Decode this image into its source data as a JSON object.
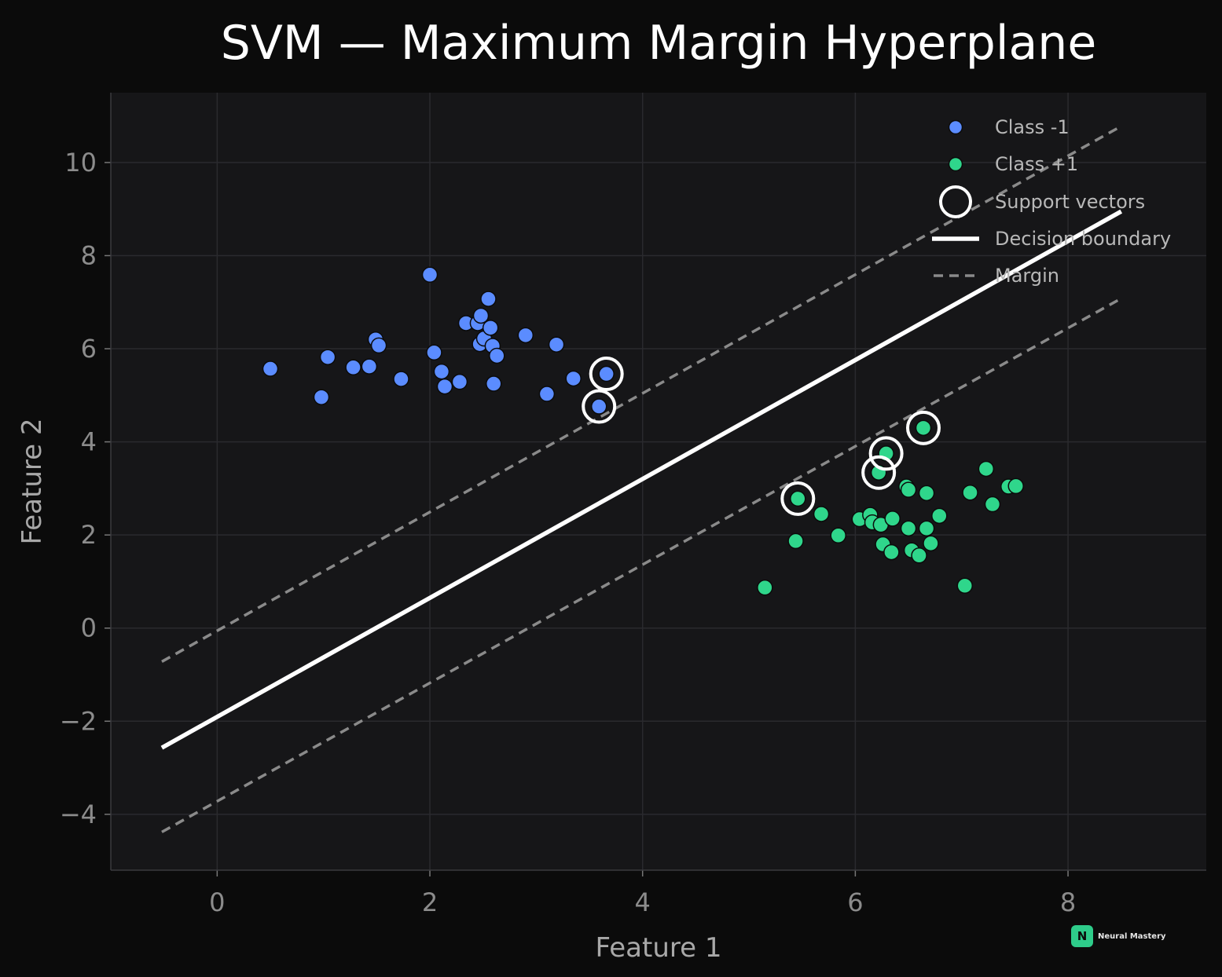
{
  "chart_data": {
    "type": "scatter",
    "title": "SVM — Maximum Margin Hyperplane",
    "xlabel": "Feature 1",
    "ylabel": "Feature 2",
    "xlim": [
      -1.0,
      9.3
    ],
    "ylim": [
      -5.2,
      11.5
    ],
    "xticks": [
      0,
      2,
      4,
      6,
      8
    ],
    "yticks": [
      -4,
      -2,
      0,
      2,
      4,
      6,
      8,
      10
    ],
    "xtick_labels": [
      "0",
      "2",
      "4",
      "6",
      "8"
    ],
    "ytick_labels": [
      "−4",
      "−2",
      "0",
      "2",
      "4",
      "6",
      "8",
      "10"
    ],
    "grid": true,
    "legend_position": "top-right",
    "colors": {
      "class_neg": "#5b8cff",
      "class_pos": "#2fd68b",
      "boundary": "#ffffff",
      "margin": "#8a8a8a",
      "background": "#0b0b0b",
      "plot_bg": "#161618",
      "grid": "#2a2a2e"
    },
    "series": [
      {
        "name": "Class -1",
        "points": [
          [
            0.5,
            5.57
          ],
          [
            0.98,
            4.96
          ],
          [
            1.04,
            5.82
          ],
          [
            1.28,
            5.6
          ],
          [
            1.43,
            5.62
          ],
          [
            1.49,
            6.2
          ],
          [
            1.52,
            6.07
          ],
          [
            1.73,
            5.35
          ],
          [
            2.0,
            7.59
          ],
          [
            2.04,
            5.92
          ],
          [
            2.11,
            5.51
          ],
          [
            2.14,
            5.19
          ],
          [
            2.28,
            5.29
          ],
          [
            2.34,
            6.55
          ],
          [
            2.45,
            6.55
          ],
          [
            2.47,
            6.1
          ],
          [
            2.48,
            6.71
          ],
          [
            2.51,
            6.22
          ],
          [
            2.55,
            7.07
          ],
          [
            2.57,
            6.45
          ],
          [
            2.59,
            6.06
          ],
          [
            2.6,
            5.25
          ],
          [
            2.63,
            5.85
          ],
          [
            2.9,
            6.29
          ],
          [
            3.1,
            5.03
          ],
          [
            3.19,
            6.09
          ],
          [
            3.35,
            5.36
          ],
          [
            3.59,
            4.76
          ],
          [
            3.66,
            5.46
          ]
        ]
      },
      {
        "name": "Class +1",
        "points": [
          [
            5.15,
            0.87
          ],
          [
            5.44,
            1.87
          ],
          [
            5.46,
            2.78
          ],
          [
            5.68,
            2.45
          ],
          [
            5.84,
            1.99
          ],
          [
            6.04,
            2.34
          ],
          [
            6.14,
            2.43
          ],
          [
            6.16,
            2.27
          ],
          [
            6.22,
            3.34
          ],
          [
            6.24,
            2.22
          ],
          [
            6.26,
            1.8
          ],
          [
            6.29,
            3.75
          ],
          [
            6.34,
            1.63
          ],
          [
            6.35,
            2.35
          ],
          [
            6.48,
            3.04
          ],
          [
            6.5,
            2.14
          ],
          [
            6.5,
            2.97
          ],
          [
            6.53,
            1.67
          ],
          [
            6.6,
            1.56
          ],
          [
            6.64,
            4.3
          ],
          [
            6.67,
            2.14
          ],
          [
            6.67,
            2.9
          ],
          [
            6.71,
            1.82
          ],
          [
            6.79,
            2.41
          ],
          [
            7.03,
            0.91
          ],
          [
            7.08,
            2.91
          ],
          [
            7.23,
            3.42
          ],
          [
            7.29,
            2.66
          ],
          [
            7.44,
            3.04
          ],
          [
            7.51,
            3.05
          ]
        ]
      }
    ],
    "support_vectors": {
      "name": "Support vectors",
      "points": [
        [
          3.59,
          4.76
        ],
        [
          3.66,
          5.46
        ],
        [
          5.46,
          2.78
        ],
        [
          6.22,
          3.34
        ],
        [
          6.29,
          3.75
        ],
        [
          6.64,
          4.3
        ]
      ]
    },
    "decision_boundary": {
      "name": "Decision boundary",
      "points": [
        [
          -0.52,
          -2.57
        ],
        [
          8.5,
          8.95
        ]
      ]
    },
    "margin_lines": {
      "name": "Margin",
      "upper": [
        [
          -0.52,
          -0.72
        ],
        [
          8.5,
          10.78
        ]
      ],
      "lower": [
        [
          -0.52,
          -4.38
        ],
        [
          8.5,
          7.08
        ]
      ]
    },
    "legend": [
      "Class -1",
      "Class +1",
      "Support vectors",
      "Decision boundary",
      "Margin"
    ]
  },
  "watermark": {
    "badge": "N",
    "text": "Neural Mastery"
  }
}
